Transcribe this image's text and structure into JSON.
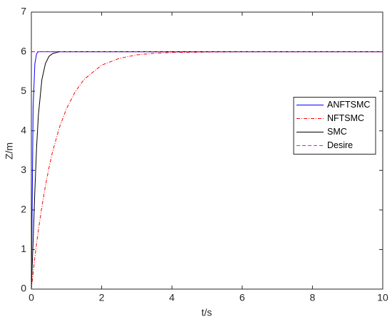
{
  "chart_data": {
    "type": "line",
    "x_label": "t/s",
    "y_label": "Z/m",
    "x": [
      0,
      0.05,
      0.1,
      0.15,
      0.2,
      0.3,
      0.4,
      0.5,
      0.6,
      0.8,
      1,
      1.25,
      1.5,
      2,
      2.5,
      3,
      3.5,
      4,
      5,
      6,
      7,
      8,
      9,
      10
    ],
    "series": [
      {
        "name": "ANFTSMC",
        "color": "#0000ff",
        "style": "-",
        "values": [
          0,
          4.6,
          5.7,
          5.95,
          6,
          6,
          6,
          6,
          6,
          6,
          6,
          6,
          6,
          6,
          6,
          6,
          6,
          6,
          6,
          6,
          6,
          6,
          6,
          6
        ]
      },
      {
        "name": "NFTSMC",
        "color": "#ff0000",
        "style": "-.",
        "values": [
          0,
          0.41,
          0.8,
          1.16,
          1.49,
          2.09,
          2.61,
          3.06,
          3.46,
          4.09,
          4.56,
          4.99,
          5.3,
          5.66,
          5.83,
          5.92,
          5.96,
          5.98,
          5.99,
          6,
          6,
          6,
          6,
          6
        ]
      },
      {
        "name": "SMC",
        "color": "#000000",
        "style": "-",
        "values": [
          0,
          1.2,
          2.5,
          3.6,
          4.4,
          5.3,
          5.7,
          5.88,
          5.95,
          6,
          6,
          6,
          6,
          6,
          6,
          6,
          6,
          6,
          6,
          6,
          6,
          6,
          6,
          6
        ]
      },
      {
        "name": "Desire",
        "color": "#ff00ff",
        "style": "--",
        "values": [
          6,
          6,
          6,
          6,
          6,
          6,
          6,
          6,
          6,
          6,
          6,
          6,
          6,
          6,
          6,
          6,
          6,
          6,
          6,
          6,
          6,
          6,
          6,
          6
        ]
      }
    ],
    "xlim": [
      0,
      10
    ],
    "xticks": [
      0,
      2,
      4,
      6,
      8,
      10
    ],
    "ylim": [
      0,
      7
    ],
    "yticks": [
      0,
      1,
      2,
      3,
      4,
      5,
      6,
      7
    ],
    "grid": false,
    "legend": "east"
  }
}
